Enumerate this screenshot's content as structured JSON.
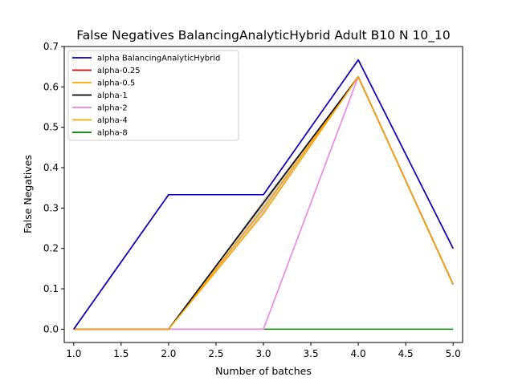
{
  "chart_data": {
    "type": "line",
    "title": "False Negatives BalancingAnalyticHybrid Adult B10 N 10_10",
    "xlabel": "Number of batches",
    "ylabel": "False Negatives",
    "xlim": [
      0.9,
      5.1
    ],
    "ylim": [
      -0.033,
      0.7
    ],
    "xticks": [
      "1.0",
      "1.5",
      "2.0",
      "2.5",
      "3.0",
      "3.5",
      "4.0",
      "4.5",
      "5.0"
    ],
    "yticks": [
      "0.0",
      "0.1",
      "0.2",
      "0.3",
      "0.4",
      "0.5",
      "0.6",
      "0.7"
    ],
    "grid": false,
    "legend_position": "upper-left",
    "x": [
      1,
      2,
      3,
      4,
      5
    ],
    "series": [
      {
        "name": "alpha BalancingAnalyticHybrid",
        "color": "#0000cc",
        "values": [
          0.0,
          0.333,
          0.333,
          0.667,
          0.2
        ]
      },
      {
        "name": "alpha-0.25",
        "color": "#dd0000",
        "values": [
          0.0,
          0.333,
          0.333,
          0.667,
          0.2
        ]
      },
      {
        "name": "alpha-0.5",
        "color": "#ffa500",
        "values": [
          0.0,
          0.0,
          0.286,
          0.625,
          0.111
        ]
      },
      {
        "name": "alpha-1",
        "color": "#000000",
        "values": [
          0.0,
          0.0,
          0.313,
          0.625,
          0.111
        ]
      },
      {
        "name": "alpha-2",
        "color": "#ee82ee",
        "values": [
          0.0,
          0.0,
          0.0,
          0.625,
          0.111
        ]
      },
      {
        "name": "alpha-4",
        "color": "#ffa500",
        "values": [
          0.0,
          0.0,
          0.299,
          0.625,
          0.111
        ]
      },
      {
        "name": "alpha-8",
        "color": "#008000",
        "values": [
          0.0,
          0.0,
          0.0,
          0.0,
          0.0
        ]
      }
    ],
    "band": {
      "color": "#bbbbbb",
      "lower": [
        0.0,
        0.0,
        0.286,
        0.625,
        0.111
      ],
      "upper": [
        0.0,
        0.0,
        0.32,
        0.625,
        0.111
      ]
    }
  }
}
